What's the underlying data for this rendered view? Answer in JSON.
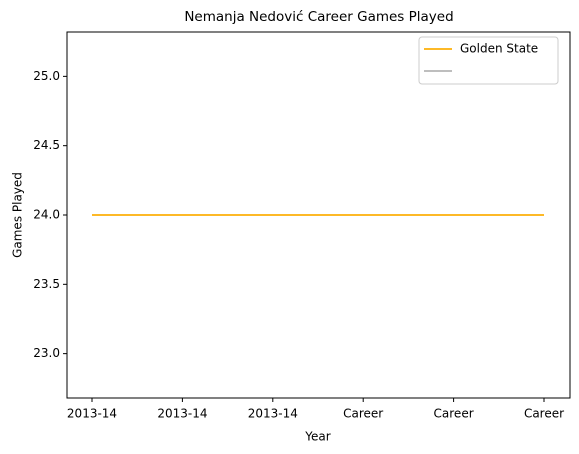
{
  "chart_data": {
    "type": "line",
    "title": "Nemanja Nedović Career Games Played",
    "x_label": "Year",
    "y_label": "Games Played",
    "categories": [
      "2013-14",
      "2013-14",
      "2013-14",
      "Career",
      "Career",
      "Career"
    ],
    "series": [
      {
        "color": "#bebebe",
        "values": [
          24,
          24,
          24,
          24,
          24,
          24
        ]
      },
      {
        "name": "Golden State",
        "color": "#fdb927",
        "values": [
          24,
          24,
          24,
          24,
          24,
          24
        ]
      }
    ],
    "ylim": [
      22.68,
      25.32
    ],
    "yticks": [
      {
        "value": 23,
        "label": "23.0"
      },
      23.5,
      {
        "value": 24,
        "label": "24.0"
      },
      24.5,
      {
        "value": 25,
        "label": "25.0"
      }
    ],
    "legend": "upper right"
  }
}
